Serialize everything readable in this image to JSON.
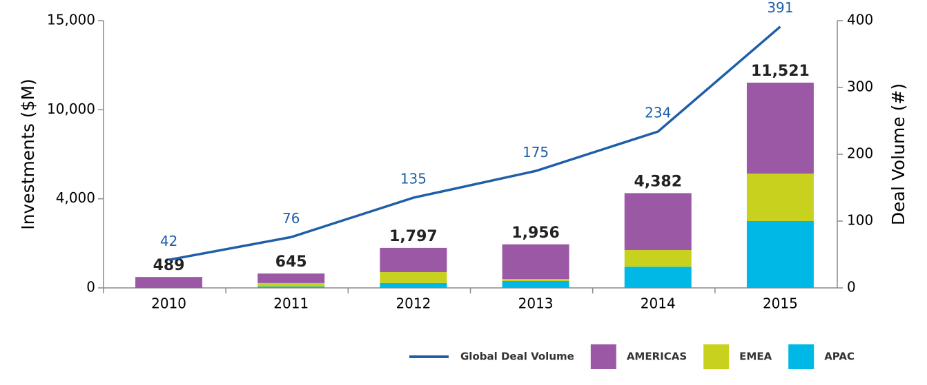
{
  "chart_data": {
    "type": "bar",
    "y_label": "Investments ($M)",
    "y2_label": "Deal Volume (#)",
    "categories": [
      "2010",
      "2011",
      "2012",
      "2013",
      "2014",
      "2015"
    ],
    "series": [
      {
        "name": "APAC",
        "color": "#00b8e6",
        "values": [
          0,
          60,
          220,
          310,
          950,
          3000
        ]
      },
      {
        "name": "EMEA",
        "color": "#c8d21e",
        "values": [
          0,
          160,
          490,
          90,
          750,
          2700
        ]
      },
      {
        "name": "AMERICAS",
        "color": "#9b59a5",
        "values": [
          489,
          425,
          1087,
          1556,
          2682,
          5821
        ]
      },
      {
        "name": "Global Deal Volume",
        "color": "#1f5fa8",
        "type": "line",
        "axis": "y2",
        "values": [
          42,
          76,
          135,
          175,
          234,
          391
        ]
      }
    ],
    "totals": {
      "values": [
        489,
        645,
        1797,
        1956,
        4382,
        11521
      ],
      "value_labels": [
        "489",
        "645",
        "1,797",
        "1,956",
        "4,382",
        "11,521"
      ]
    },
    "ylim": [
      0,
      15000
    ],
    "yticks": [
      0,
      {
        "value": 4000,
        "label": "4,000"
      },
      {
        "value": 10000,
        "label": "10,000"
      },
      {
        "value": 15000,
        "label": "15,000"
      }
    ],
    "y2lim": [
      0,
      400
    ],
    "y2ticks": [
      0,
      100,
      200,
      300,
      400
    ],
    "legend": "bottom"
  }
}
